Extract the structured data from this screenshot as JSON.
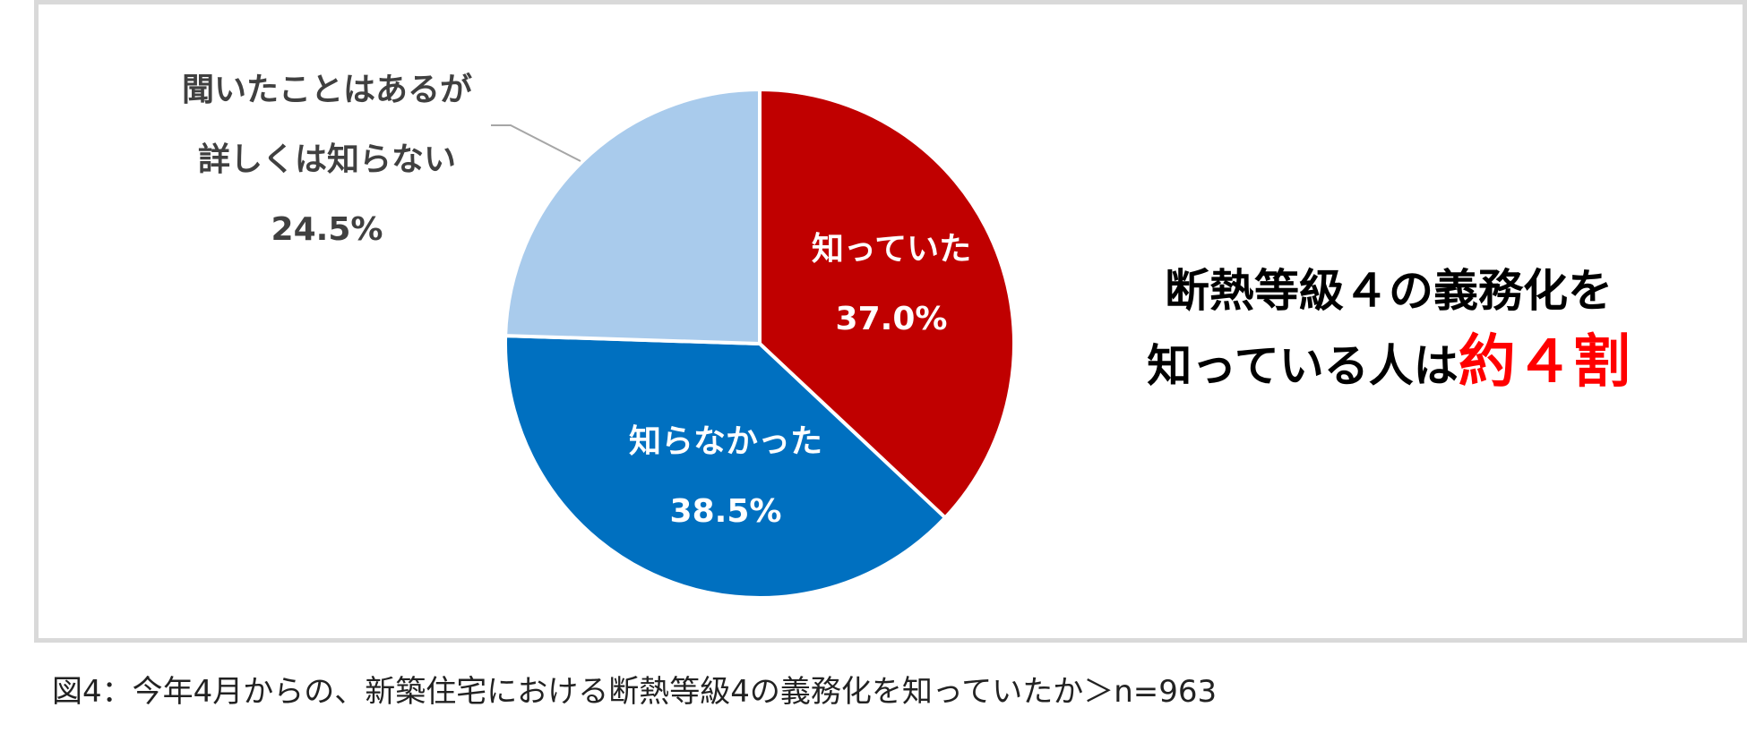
{
  "chart_data": {
    "type": "pie",
    "slices": [
      {
        "label": "知っていた",
        "value": 37.0,
        "value_text": "37.0%",
        "color": "#c00000"
      },
      {
        "label": "知らなかった",
        "value": 38.5,
        "value_text": "38.5%",
        "color": "#0070c0"
      },
      {
        "label": "聞いたことはあるが詳しくは知らない",
        "label_lines": [
          "聞いたことはあるが",
          "詳しくは知らない"
        ],
        "value": 24.5,
        "value_text": "24.5%",
        "color": "#a9cbec"
      }
    ],
    "start_angle_deg": 0,
    "direction": "clockwise"
  },
  "headline": {
    "line1": "断熱等級４の義務化を",
    "line2_prefix": "知っている人は",
    "line2_emphasis": "約４割",
    "emphasis_color": "#ff0000"
  },
  "caption": "図4：今年4月からの、新築住宅における断熱等級4の義務化を知っていたか＞n=963"
}
